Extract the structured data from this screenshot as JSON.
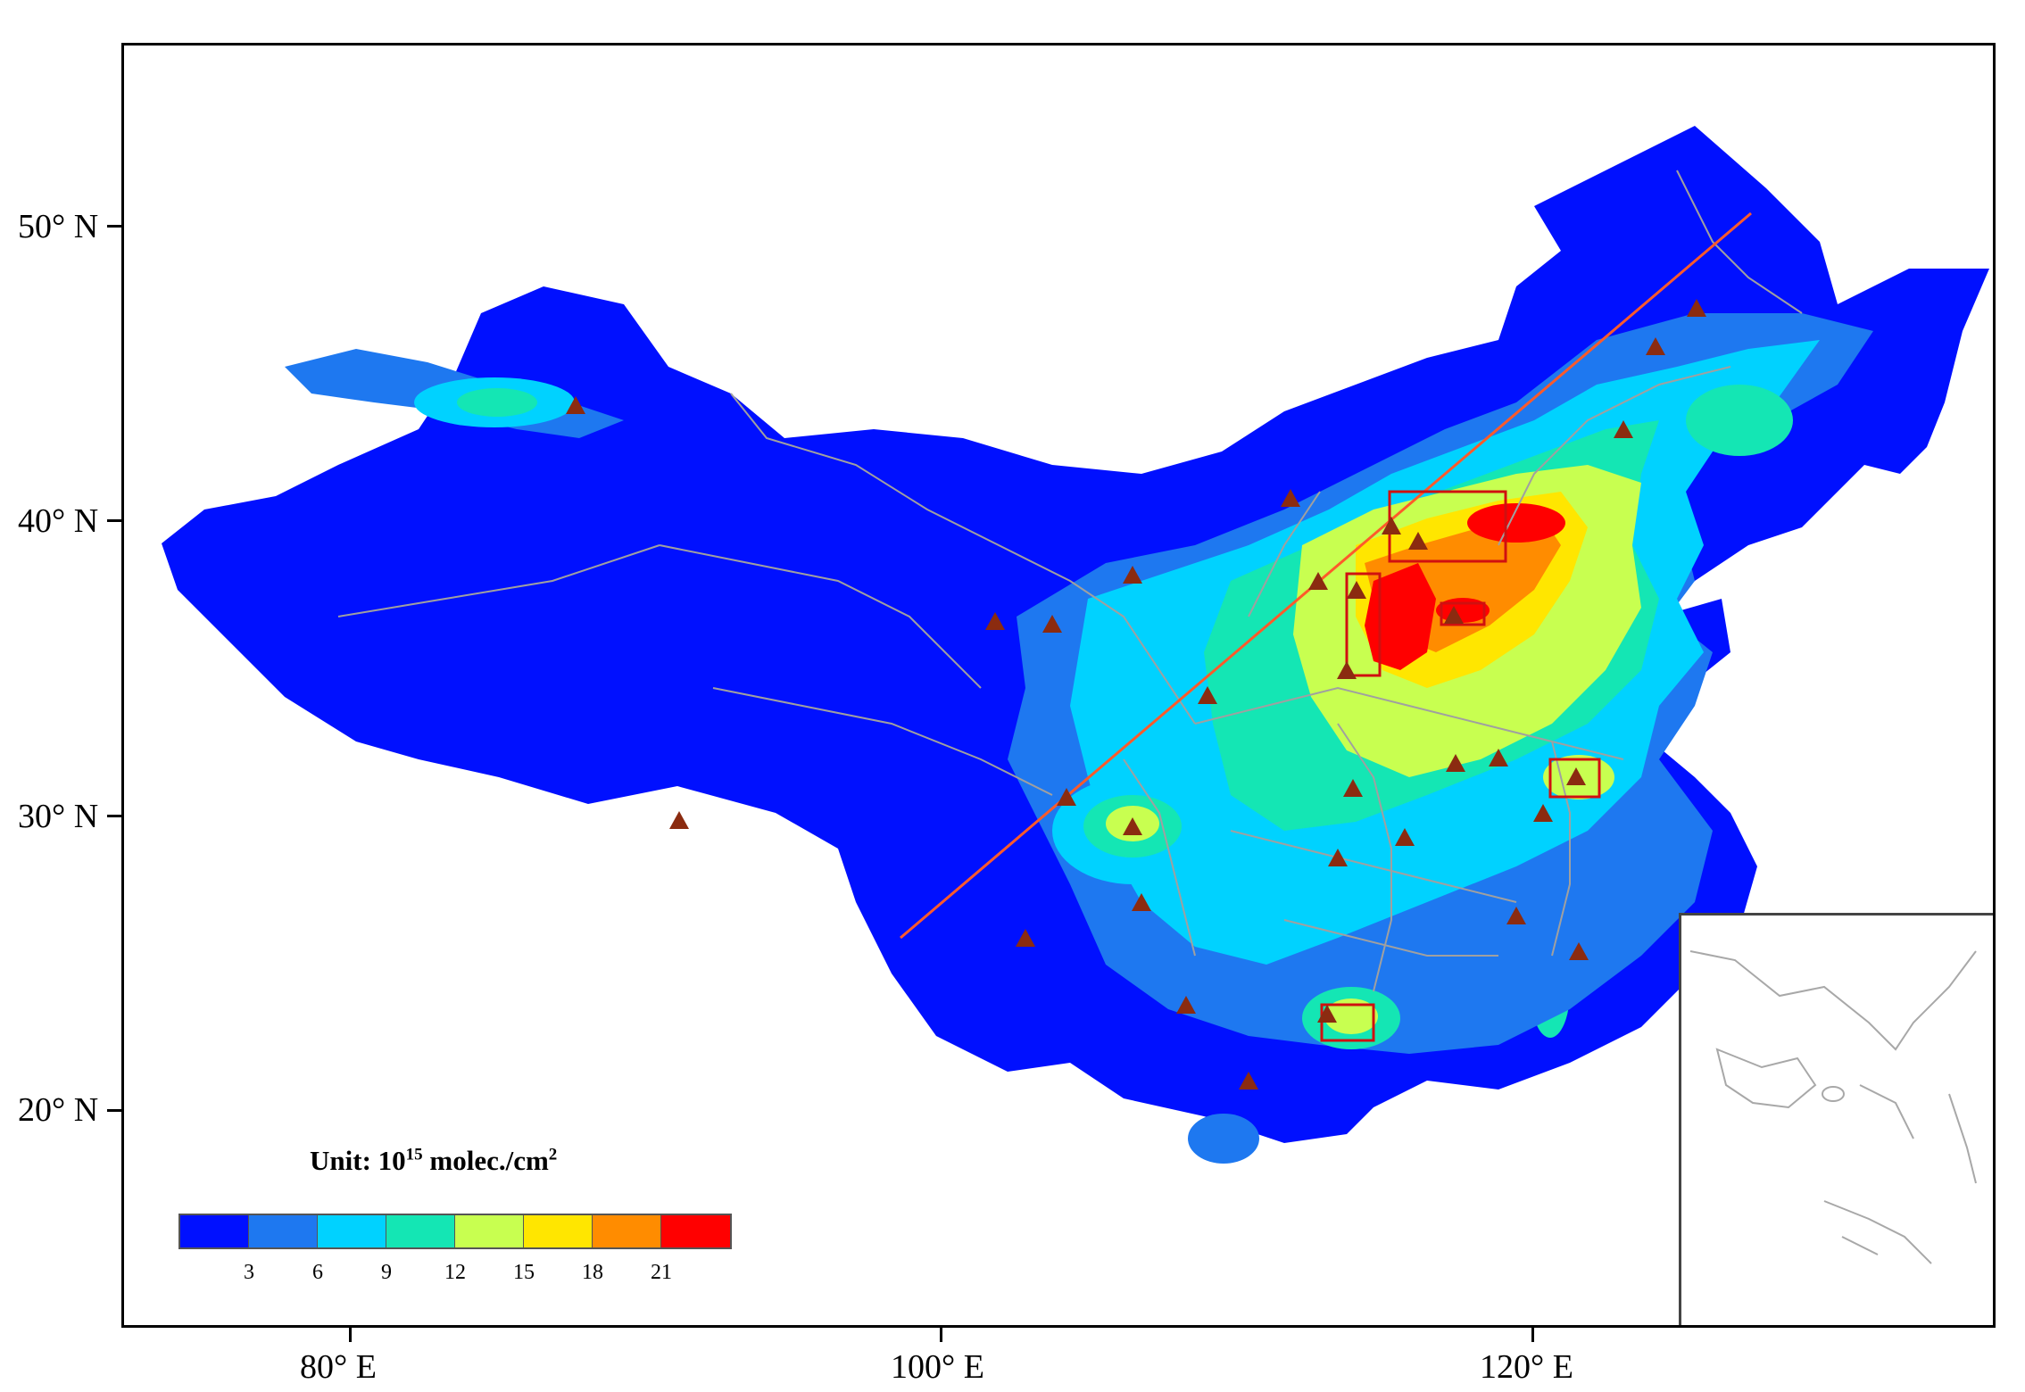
{
  "axes": {
    "lat_labels": [
      "50° N",
      "40° N",
      "30° N",
      "20° N"
    ],
    "lon_labels": [
      "80° E",
      "100° E",
      "120° E"
    ]
  },
  "legend": {
    "title_prefix": "Unit: 10",
    "title_exponent": "15",
    "title_suffix": " molec./cm",
    "title_suffix_exponent": "2",
    "colors": [
      "#0010ff",
      "#1e78f0",
      "#00d2ff",
      "#14e6b4",
      "#c8ff50",
      "#ffe600",
      "#ff8c00",
      "#ff0000"
    ],
    "tick_labels": [
      "3",
      "6",
      "9",
      "12",
      "15",
      "18",
      "21"
    ]
  },
  "colors": {
    "marker": "#8b2b10",
    "highlight_box": "#d01010",
    "transect_line": "#ff5a2a",
    "boundary": "#a0a0a0"
  }
}
